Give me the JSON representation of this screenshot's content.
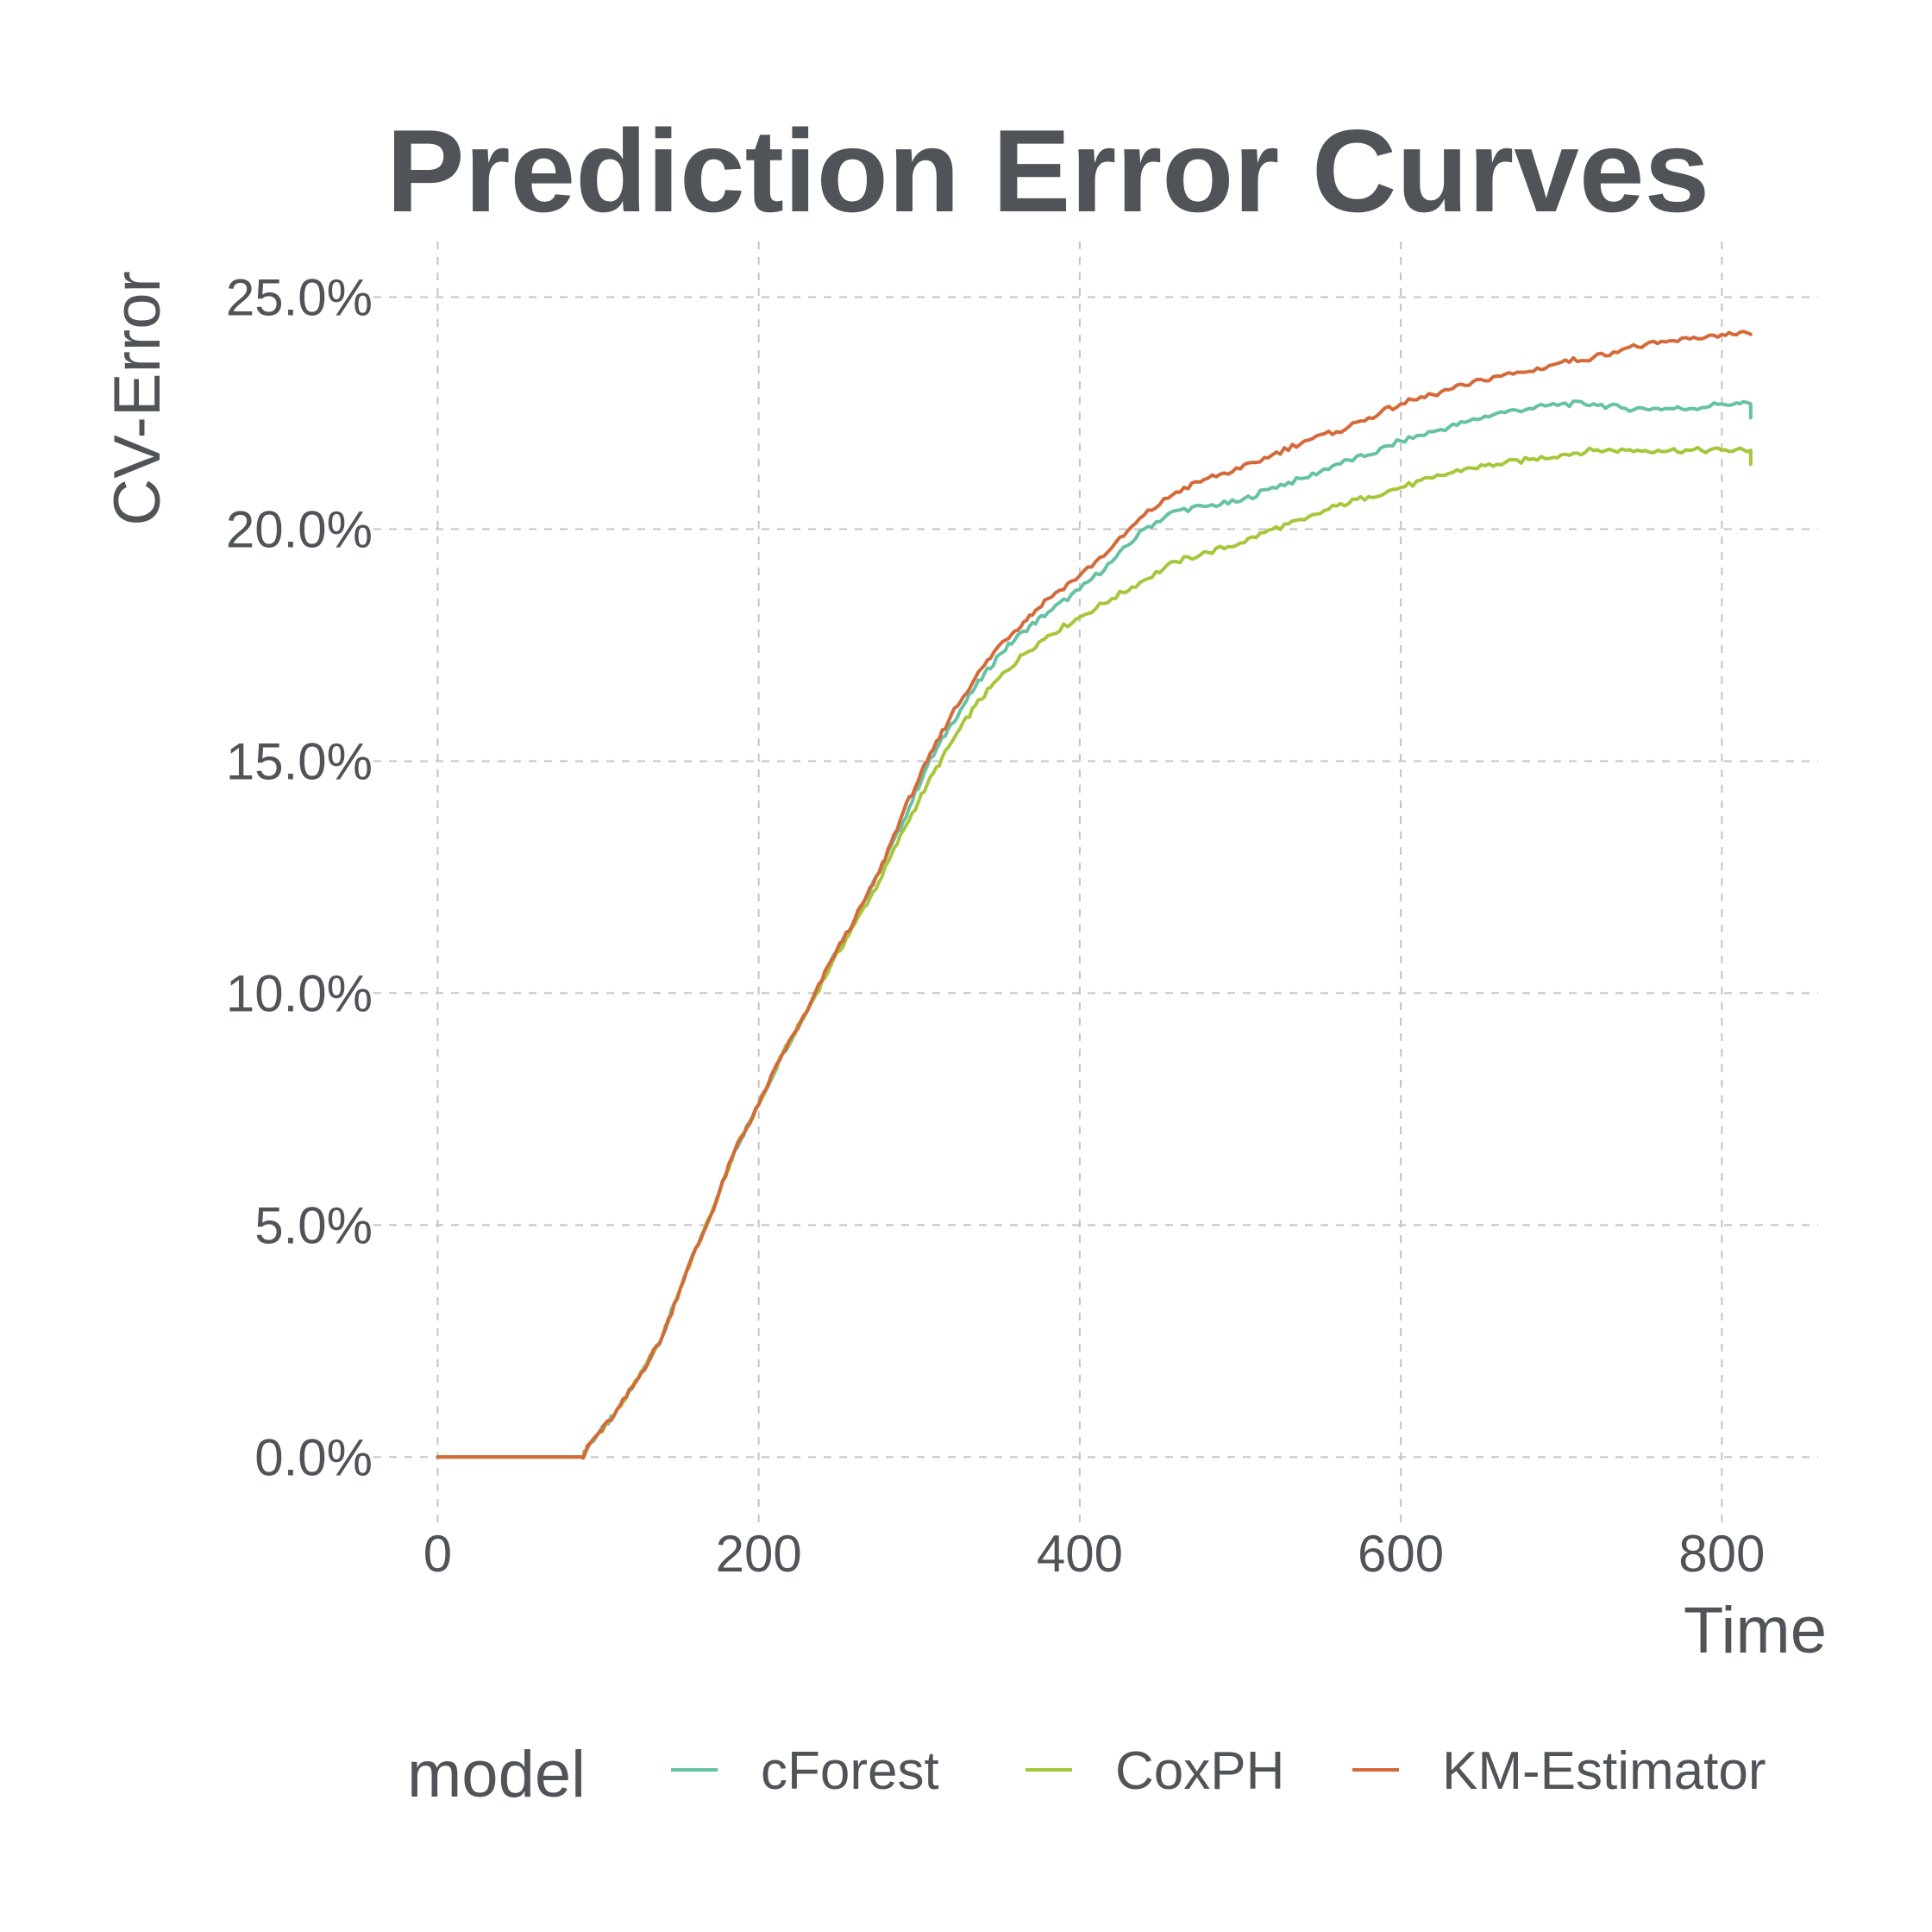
{
  "chart_data": {
    "type": "line",
    "title": "Prediction Error Curves",
    "xlabel": "Time",
    "ylabel": "CV-Error",
    "xlim": [
      -40,
      860
    ],
    "ylim": [
      -0.015,
      0.262
    ],
    "x_ticks": [
      0,
      200,
      400,
      600,
      800
    ],
    "x_tick_labels": [
      "0",
      "200",
      "400",
      "600",
      "800"
    ],
    "y_ticks": [
      0,
      0.05,
      0.1,
      0.15,
      0.2,
      0.25
    ],
    "y_tick_labels": [
      "0.0%",
      "5.0%",
      "10.0%",
      "15.0%",
      "20.0%",
      "25.0%"
    ],
    "grid": true,
    "legend": {
      "title": "model",
      "position": "bottom"
    },
    "series": [
      {
        "name": "cForest",
        "color": "#66c2a5",
        "points": [
          [
            0,
            0
          ],
          [
            90,
            0
          ],
          [
            95,
            0.003
          ],
          [
            110,
            0.009
          ],
          [
            125,
            0.017
          ],
          [
            140,
            0.026
          ],
          [
            155,
            0.04
          ],
          [
            170,
            0.052
          ],
          [
            185,
            0.066
          ],
          [
            200,
            0.076
          ],
          [
            215,
            0.087
          ],
          [
            230,
            0.096
          ],
          [
            245,
            0.107
          ],
          [
            260,
            0.116
          ],
          [
            275,
            0.126
          ],
          [
            290,
            0.137
          ],
          [
            305,
            0.149
          ],
          [
            320,
            0.158
          ],
          [
            335,
            0.166
          ],
          [
            350,
            0.173
          ],
          [
            365,
            0.178
          ],
          [
            380,
            0.182
          ],
          [
            400,
            0.187
          ],
          [
            420,
            0.193
          ],
          [
            440,
            0.2
          ],
          [
            460,
            0.204
          ],
          [
            480,
            0.205
          ],
          [
            500,
            0.206
          ],
          [
            520,
            0.209
          ],
          [
            540,
            0.211
          ],
          [
            560,
            0.214
          ],
          [
            580,
            0.216
          ],
          [
            600,
            0.219
          ],
          [
            620,
            0.221
          ],
          [
            640,
            0.223
          ],
          [
            660,
            0.225
          ],
          [
            680,
            0.226
          ],
          [
            700,
            0.227
          ],
          [
            720,
            0.227
          ],
          [
            740,
            0.226
          ],
          [
            760,
            0.226
          ],
          [
            780,
            0.226
          ],
          [
            800,
            0.227
          ],
          [
            818,
            0.227
          ],
          [
            818,
            0.224
          ]
        ]
      },
      {
        "name": "CoxPH",
        "color": "#a6c73a",
        "points": [
          [
            0,
            0
          ],
          [
            90,
            0
          ],
          [
            95,
            0.003
          ],
          [
            110,
            0.009
          ],
          [
            125,
            0.017
          ],
          [
            140,
            0.026
          ],
          [
            155,
            0.04
          ],
          [
            170,
            0.052
          ],
          [
            185,
            0.066
          ],
          [
            200,
            0.076
          ],
          [
            215,
            0.087
          ],
          [
            230,
            0.096
          ],
          [
            245,
            0.106
          ],
          [
            260,
            0.115
          ],
          [
            275,
            0.124
          ],
          [
            290,
            0.135
          ],
          [
            305,
            0.145
          ],
          [
            320,
            0.154
          ],
          [
            335,
            0.162
          ],
          [
            350,
            0.168
          ],
          [
            365,
            0.173
          ],
          [
            380,
            0.177
          ],
          [
            400,
            0.181
          ],
          [
            420,
            0.185
          ],
          [
            440,
            0.189
          ],
          [
            460,
            0.193
          ],
          [
            480,
            0.195
          ],
          [
            500,
            0.197
          ],
          [
            520,
            0.2
          ],
          [
            540,
            0.202
          ],
          [
            560,
            0.205
          ],
          [
            580,
            0.207
          ],
          [
            600,
            0.209
          ],
          [
            620,
            0.211
          ],
          [
            640,
            0.213
          ],
          [
            660,
            0.214
          ],
          [
            680,
            0.215
          ],
          [
            700,
            0.216
          ],
          [
            720,
            0.217
          ],
          [
            740,
            0.217
          ],
          [
            760,
            0.217
          ],
          [
            780,
            0.217
          ],
          [
            800,
            0.217
          ],
          [
            818,
            0.217
          ],
          [
            818,
            0.214
          ]
        ]
      },
      {
        "name": "KM-Estimator",
        "color": "#d46a3a",
        "points": [
          [
            0,
            0
          ],
          [
            90,
            0
          ],
          [
            95,
            0.003
          ],
          [
            110,
            0.009
          ],
          [
            125,
            0.017
          ],
          [
            140,
            0.026
          ],
          [
            155,
            0.04
          ],
          [
            170,
            0.052
          ],
          [
            185,
            0.066
          ],
          [
            200,
            0.076
          ],
          [
            215,
            0.087
          ],
          [
            230,
            0.096
          ],
          [
            245,
            0.107
          ],
          [
            260,
            0.116
          ],
          [
            275,
            0.126
          ],
          [
            290,
            0.139
          ],
          [
            305,
            0.15
          ],
          [
            320,
            0.16
          ],
          [
            335,
            0.168
          ],
          [
            350,
            0.175
          ],
          [
            365,
            0.18
          ],
          [
            380,
            0.185
          ],
          [
            400,
            0.19
          ],
          [
            420,
            0.196
          ],
          [
            440,
            0.203
          ],
          [
            460,
            0.208
          ],
          [
            480,
            0.211
          ],
          [
            500,
            0.213
          ],
          [
            520,
            0.216
          ],
          [
            540,
            0.219
          ],
          [
            560,
            0.221
          ],
          [
            580,
            0.224
          ],
          [
            600,
            0.227
          ],
          [
            620,
            0.229
          ],
          [
            640,
            0.231
          ],
          [
            660,
            0.233
          ],
          [
            680,
            0.234
          ],
          [
            700,
            0.236
          ],
          [
            720,
            0.237
          ],
          [
            740,
            0.239
          ],
          [
            760,
            0.24
          ],
          [
            780,
            0.241
          ],
          [
            800,
            0.242
          ],
          [
            818,
            0.242
          ]
        ]
      }
    ]
  }
}
